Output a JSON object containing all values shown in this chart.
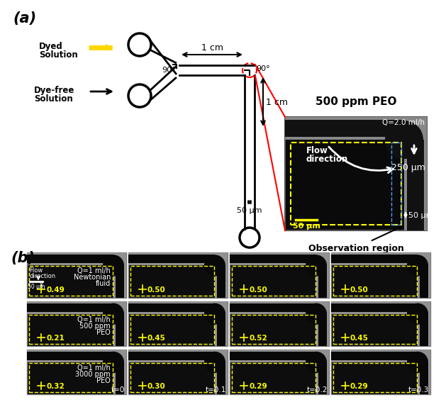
{
  "panel_a": {
    "label": "(a)",
    "dyed_label": "Dyed\nSolution",
    "dyefree_label": "Dye-free\nSolution",
    "dim_1cm_top": "1 cm",
    "dim_1cm_right": "1 cm",
    "dim_50um": "50 μm",
    "angle_top": "90°",
    "angle_bottom": "90°",
    "inset_title": "500 ppm PEO",
    "inset_q": "Q=2.0 ml/h",
    "inset_flow": "Flow\ndirection",
    "inset_250um": "250 μm",
    "inset_50um_h": "50 μm",
    "inset_50um_v": "50 μm",
    "obs_label": "Observation region"
  },
  "panel_b": {
    "label": "(b)",
    "rows": [
      {
        "condition": "Q=1 ml/h\nNewtonian\nfluid",
        "values": [
          "0.49",
          "0.50",
          "0.50",
          "0.50"
        ],
        "times": [
          "",
          "",
          "",
          ""
        ]
      },
      {
        "condition": "Q=1 ml/h\n500 ppm\nPEO",
        "values": [
          "0.21",
          "0.45",
          "0.52",
          "0.45"
        ],
        "times": [
          "",
          "",
          "",
          ""
        ]
      },
      {
        "condition": "Q=1 ml/h\n3000 ppm\nPEO",
        "values": [
          "0.32",
          "0.30",
          "0.29",
          "0.29"
        ],
        "times": [
          "t=0",
          "t=0.1",
          "t=0.2",
          "t=0.3"
        ]
      }
    ],
    "scale_bar": "50 μm",
    "flow_label": "Flow\ndirection"
  }
}
